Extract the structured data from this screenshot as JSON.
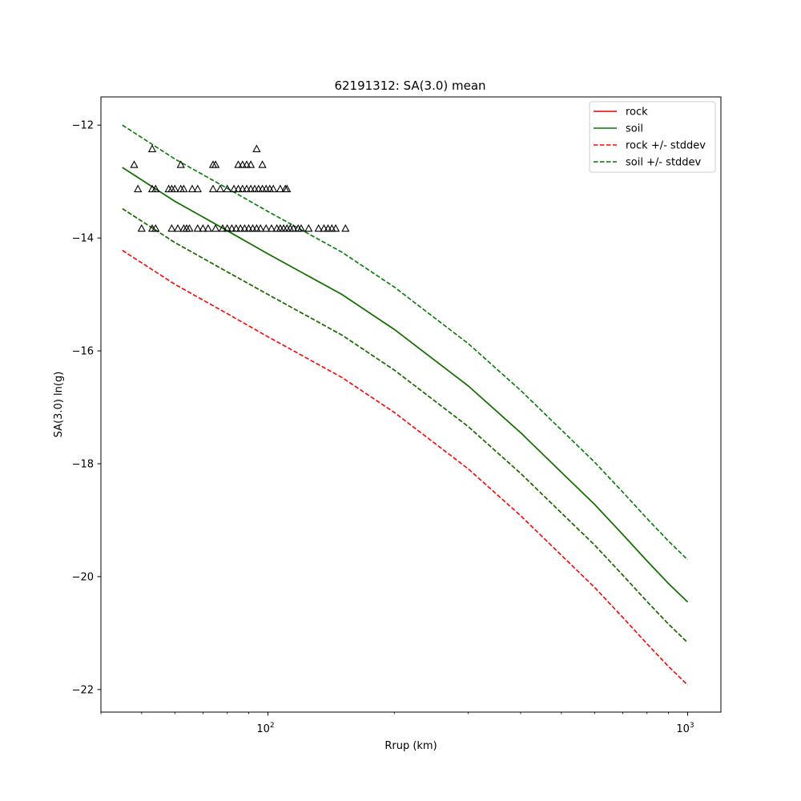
{
  "chart_data": {
    "type": "line",
    "title": "62191312: SA(3.0) mean",
    "xlabel": "Rrup (km)",
    "ylabel": "SA(3.0) ln(g)",
    "x_scale": "log",
    "xlim": [
      40,
      1200
    ],
    "ylim": [
      -22.4,
      -11.5
    ],
    "x_ticks": [
      {
        "value": 100,
        "base": "10",
        "exp": "2"
      },
      {
        "value": 1000,
        "base": "10",
        "exp": "3"
      }
    ],
    "y_ticks": [
      {
        "value": -12,
        "label": "−12"
      },
      {
        "value": -14,
        "label": "−14"
      },
      {
        "value": -16,
        "label": "−16"
      },
      {
        "value": -18,
        "label": "−18"
      },
      {
        "value": -20,
        "label": "−20"
      },
      {
        "value": -22,
        "label": "−22"
      }
    ],
    "grid": false,
    "legend_position": "top-right",
    "x": [
      45,
      60,
      80,
      100,
      150,
      200,
      300,
      400,
      500,
      600,
      700,
      800,
      900,
      1000
    ],
    "series": [
      {
        "name": "rock",
        "style": "solid",
        "color": "#e00000",
        "values": [
          -12.75,
          -13.35,
          -13.87,
          -14.28,
          -15.0,
          -15.62,
          -16.62,
          -17.45,
          -18.15,
          -18.72,
          -19.25,
          -19.72,
          -20.12,
          -20.45
        ]
      },
      {
        "name": "soil",
        "style": "solid",
        "color": "#007a00",
        "values": [
          -12.75,
          -13.35,
          -13.87,
          -14.28,
          -15.0,
          -15.62,
          -16.62,
          -17.45,
          -18.15,
          -18.72,
          -19.25,
          -19.72,
          -20.12,
          -20.45
        ]
      },
      {
        "name": "rock +/- stddev",
        "style": "dashed",
        "color": "#ff0000",
        "values": [
          -13.48,
          -14.08,
          -14.6,
          -15.0,
          -15.72,
          -16.34,
          -17.34,
          -18.17,
          -18.87,
          -19.44,
          -19.97,
          -20.44,
          -20.84,
          -21.17
        ]
      },
      {
        "name": "",
        "style": "dashed",
        "color": "#ff0000",
        "values": [
          -14.22,
          -14.82,
          -15.34,
          -15.75,
          -16.47,
          -17.09,
          -18.09,
          -18.92,
          -19.62,
          -20.19,
          -20.72,
          -21.19,
          -21.59,
          -21.92
        ]
      },
      {
        "name": "soil +/- stddev",
        "style": "dashed",
        "color": "#007a00",
        "values": [
          -12.0,
          -12.6,
          -13.12,
          -13.53,
          -14.25,
          -14.87,
          -15.87,
          -16.7,
          -17.4,
          -17.97,
          -18.5,
          -18.97,
          -19.37,
          -19.7
        ]
      },
      {
        "name": "",
        "style": "dashed",
        "color": "#007a00",
        "values": [
          -13.48,
          -14.08,
          -14.6,
          -15.0,
          -15.72,
          -16.34,
          -17.34,
          -18.17,
          -18.87,
          -19.44,
          -19.97,
          -20.44,
          -20.84,
          -21.17
        ]
      }
    ],
    "observations": [
      {
        "x": 48,
        "y": -12.7
      },
      {
        "x": 53,
        "y": -12.42
      },
      {
        "x": 62,
        "y": -12.7
      },
      {
        "x": 74,
        "y": -12.7
      },
      {
        "x": 75,
        "y": -12.7
      },
      {
        "x": 85,
        "y": -12.7
      },
      {
        "x": 87,
        "y": -12.7
      },
      {
        "x": 89,
        "y": -12.7
      },
      {
        "x": 91,
        "y": -12.7
      },
      {
        "x": 94,
        "y": -12.42
      },
      {
        "x": 97,
        "y": -12.7
      },
      {
        "x": 49,
        "y": -13.13
      },
      {
        "x": 53,
        "y": -13.13
      },
      {
        "x": 54,
        "y": -13.13
      },
      {
        "x": 58,
        "y": -13.13
      },
      {
        "x": 59,
        "y": -13.13
      },
      {
        "x": 60,
        "y": -13.13
      },
      {
        "x": 62,
        "y": -13.13
      },
      {
        "x": 63,
        "y": -13.13
      },
      {
        "x": 66,
        "y": -13.13
      },
      {
        "x": 68,
        "y": -13.13
      },
      {
        "x": 74,
        "y": -13.13
      },
      {
        "x": 77,
        "y": -13.13
      },
      {
        "x": 80,
        "y": -13.13
      },
      {
        "x": 83,
        "y": -13.13
      },
      {
        "x": 85,
        "y": -13.13
      },
      {
        "x": 87,
        "y": -13.13
      },
      {
        "x": 89,
        "y": -13.13
      },
      {
        "x": 91,
        "y": -13.13
      },
      {
        "x": 93,
        "y": -13.13
      },
      {
        "x": 95,
        "y": -13.13
      },
      {
        "x": 97,
        "y": -13.13
      },
      {
        "x": 99,
        "y": -13.13
      },
      {
        "x": 101,
        "y": -13.13
      },
      {
        "x": 103,
        "y": -13.13
      },
      {
        "x": 107,
        "y": -13.13
      },
      {
        "x": 110,
        "y": -13.13
      },
      {
        "x": 111,
        "y": -13.13
      },
      {
        "x": 50,
        "y": -13.83
      },
      {
        "x": 53,
        "y": -13.83
      },
      {
        "x": 54,
        "y": -13.83
      },
      {
        "x": 59,
        "y": -13.83
      },
      {
        "x": 61,
        "y": -13.83
      },
      {
        "x": 63,
        "y": -13.83
      },
      {
        "x": 64,
        "y": -13.83
      },
      {
        "x": 65,
        "y": -13.83
      },
      {
        "x": 68,
        "y": -13.83
      },
      {
        "x": 70,
        "y": -13.83
      },
      {
        "x": 72,
        "y": -13.83
      },
      {
        "x": 75,
        "y": -13.83
      },
      {
        "x": 78,
        "y": -13.83
      },
      {
        "x": 80,
        "y": -13.83
      },
      {
        "x": 82,
        "y": -13.83
      },
      {
        "x": 84,
        "y": -13.83
      },
      {
        "x": 86,
        "y": -13.83
      },
      {
        "x": 88,
        "y": -13.83
      },
      {
        "x": 90,
        "y": -13.83
      },
      {
        "x": 92,
        "y": -13.83
      },
      {
        "x": 94,
        "y": -13.83
      },
      {
        "x": 96,
        "y": -13.83
      },
      {
        "x": 99,
        "y": -13.83
      },
      {
        "x": 102,
        "y": -13.83
      },
      {
        "x": 105,
        "y": -13.83
      },
      {
        "x": 107,
        "y": -13.83
      },
      {
        "x": 109,
        "y": -13.83
      },
      {
        "x": 111,
        "y": -13.83
      },
      {
        "x": 113,
        "y": -13.83
      },
      {
        "x": 115,
        "y": -13.83
      },
      {
        "x": 118,
        "y": -13.83
      },
      {
        "x": 120,
        "y": -13.83
      },
      {
        "x": 125,
        "y": -13.83
      },
      {
        "x": 132,
        "y": -13.83
      },
      {
        "x": 136,
        "y": -13.83
      },
      {
        "x": 139,
        "y": -13.83
      },
      {
        "x": 142,
        "y": -13.83
      },
      {
        "x": 145,
        "y": -13.83
      },
      {
        "x": 153,
        "y": -13.83
      }
    ]
  }
}
